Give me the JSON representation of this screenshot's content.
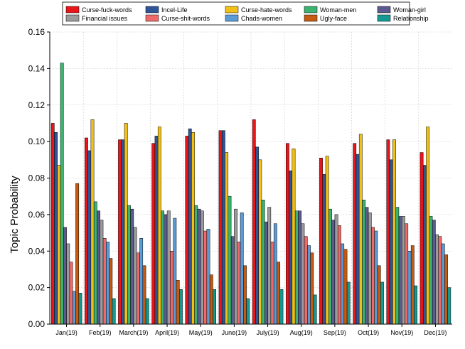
{
  "chart_data": {
    "type": "bar",
    "title": "",
    "xlabel": "",
    "ylabel": "Topic Probability",
    "ylim": [
      0,
      0.16
    ],
    "yticks": [
      "0.00",
      "0.02",
      "0.04",
      "0.06",
      "0.08",
      "0.10",
      "0.12",
      "0.14",
      "0.16"
    ],
    "grid": true,
    "legend_position": "top",
    "categories": [
      "Jan(19)",
      "Feb(19)",
      "March(19)",
      "April(19)",
      "May(19)",
      "June(19)",
      "July(19)",
      "Aug(19)",
      "Sep(19)",
      "Oct(19)",
      "Nov(19)",
      "Dec(19)"
    ],
    "series": [
      {
        "name": "Curse-fuck-words",
        "color": "#e8161b",
        "values": [
          0.11,
          0.102,
          0.101,
          0.099,
          0.103,
          0.106,
          0.112,
          0.099,
          0.091,
          0.099,
          0.101,
          0.094
        ]
      },
      {
        "name": "Incel-Life",
        "color": "#2f5597",
        "values": [
          0.105,
          0.095,
          0.101,
          0.103,
          0.107,
          0.106,
          0.097,
          0.084,
          0.082,
          0.093,
          0.09,
          0.087
        ]
      },
      {
        "name": "Curse-hate-words",
        "color": "#f2c014",
        "values": [
          0.087,
          0.112,
          0.11,
          0.108,
          0.105,
          0.094,
          0.09,
          0.096,
          0.092,
          0.104,
          0.101,
          0.108
        ]
      },
      {
        "name": "Woman-men",
        "color": "#3cb371",
        "values": [
          0.143,
          0.067,
          0.065,
          0.062,
          0.065,
          0.07,
          0.068,
          0.062,
          0.063,
          0.068,
          0.064,
          0.059
        ]
      },
      {
        "name": "Woman-girl",
        "color": "#5b5b8f",
        "values": [
          0.053,
          0.062,
          0.063,
          0.06,
          0.063,
          0.048,
          0.056,
          0.062,
          0.057,
          0.064,
          0.059,
          0.057
        ]
      },
      {
        "name": "Financial issues",
        "color": "#9b9b9b",
        "values": [
          0.044,
          0.057,
          0.053,
          0.062,
          0.062,
          0.063,
          0.064,
          0.055,
          0.06,
          0.061,
          0.059,
          0.049
        ]
      },
      {
        "name": "Curse-shit-words",
        "color": "#ee6a6a",
        "values": [
          0.034,
          0.047,
          0.039,
          0.04,
          0.051,
          0.045,
          0.045,
          0.048,
          0.054,
          0.053,
          0.055,
          0.048
        ]
      },
      {
        "name": "Chads-women",
        "color": "#5b9bd5",
        "values": [
          0.018,
          0.045,
          0.047,
          0.058,
          0.052,
          0.061,
          0.055,
          0.043,
          0.044,
          0.051,
          0.04,
          0.044
        ]
      },
      {
        "name": "Ugly-face",
        "color": "#c55a11",
        "values": [
          0.077,
          0.036,
          0.032,
          0.024,
          0.027,
          0.032,
          0.034,
          0.039,
          0.041,
          0.032,
          0.043,
          0.038
        ]
      },
      {
        "name": "Relationship",
        "color": "#159a93",
        "values": [
          0.017,
          0.014,
          0.014,
          0.019,
          0.019,
          0.014,
          0.019,
          0.016,
          0.023,
          0.023,
          0.021,
          0.02
        ]
      }
    ]
  }
}
